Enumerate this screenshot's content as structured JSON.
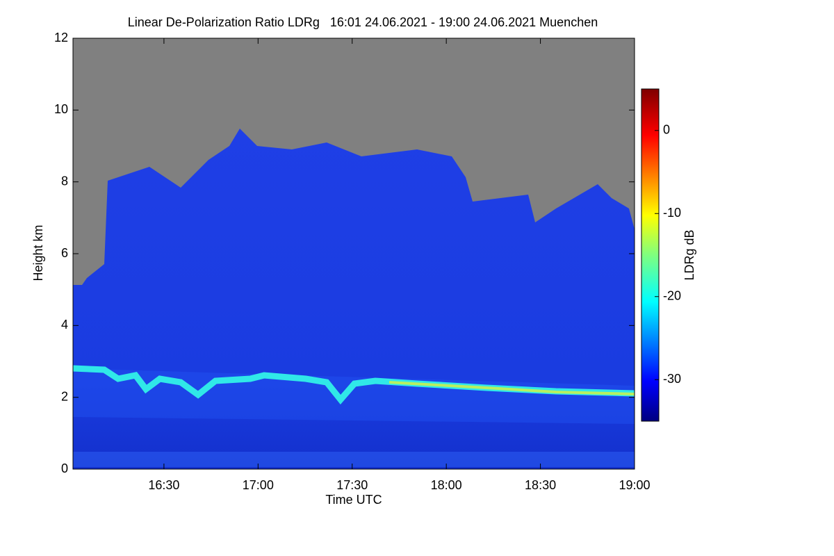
{
  "chart_data": {
    "type": "heatmap",
    "title": "Linear De-Polarization Ratio LDRg   16:01 24.06.2021 - 19:00 24.06.2021 Muenchen",
    "x_label": "Time UTC",
    "y_label": "Height km",
    "xlim": [
      16.0167,
      19.0
    ],
    "xticks": [
      {
        "value": 16.5,
        "label": "16:30"
      },
      {
        "value": 17.0,
        "label": "17:00"
      },
      {
        "value": 17.5,
        "label": "17:30"
      },
      {
        "value": 18.0,
        "label": "18:00"
      },
      {
        "value": 18.5,
        "label": "18:30"
      },
      {
        "value": 19.0,
        "label": "19:00"
      }
    ],
    "ylim": [
      0,
      12
    ],
    "yticks": [
      0,
      2,
      4,
      6,
      8,
      10,
      12
    ],
    "colorbar_label": "LDRg dB",
    "zlim": [
      -35,
      5
    ],
    "zticks": [
      0,
      -10,
      -20,
      -30
    ]
  }
}
